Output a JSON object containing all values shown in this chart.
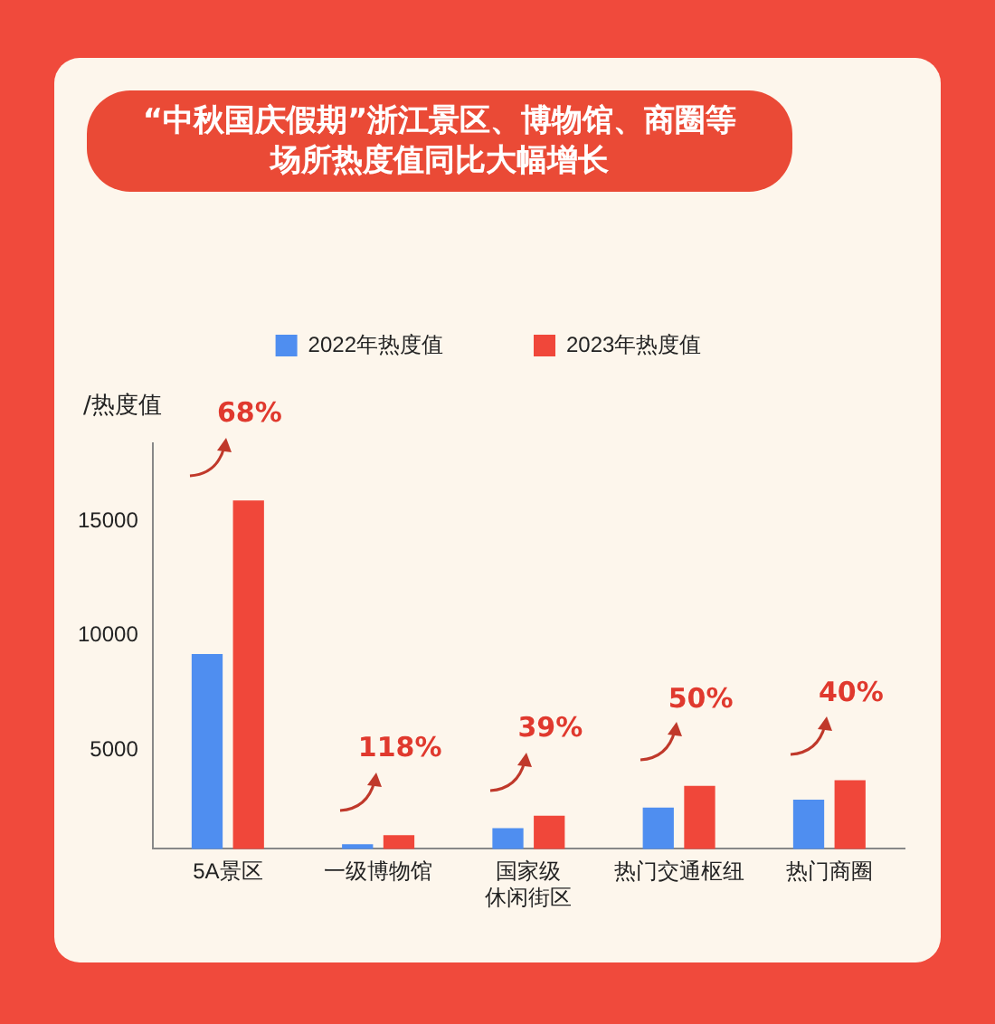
{
  "chart_data": {
    "type": "bar",
    "title": "“中秋国庆假期”浙江景区、博物馆、商圈等场所热度值同比大幅增长",
    "ylabel": "/热度值",
    "categories": [
      "5A景区",
      "一级博物馆",
      "国家级休闲街区",
      "热门交通枢纽",
      "热门商圈"
    ],
    "series": [
      {
        "name": "2022年热度值",
        "color": "#4f8ef0",
        "values": [
          9200,
          900,
          1600,
          2500,
          2850
        ]
      },
      {
        "name": "2023年热度值",
        "color": "#f0473a",
        "values": [
          15900,
          1300,
          2150,
          3450,
          3700
        ]
      }
    ],
    "ylim": [
      700,
      18400
    ],
    "yticks": [
      5000,
      10000,
      15000
    ],
    "grid": false,
    "legend": "top",
    "annotations": [
      "68%",
      "118%",
      "39%",
      "50%",
      "40%"
    ]
  }
}
